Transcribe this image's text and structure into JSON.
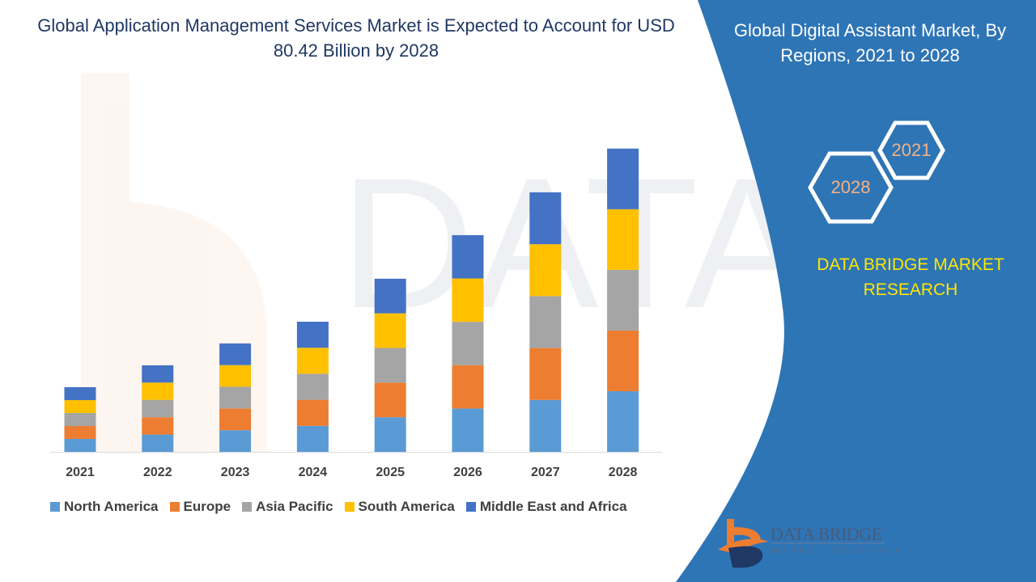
{
  "title": "Global Application Management Services Market is Expected to Account for USD 80.42 Billion by 2028",
  "side_panel": {
    "title": "Global Digital Assistant Market, By Regions, 2021 to 2028",
    "hex_years": [
      "2021",
      "2028"
    ],
    "brand": "DATA BRIDGE MARKET RESEARCH",
    "logo_text": "DATA BRIDGE",
    "logo_subtext": "MARKET RESEARCH",
    "panel_color": "#2e75b6"
  },
  "chart_data": {
    "type": "bar",
    "stacked": true,
    "categories": [
      "2021",
      "2022",
      "2023",
      "2024",
      "2025",
      "2026",
      "2027",
      "2028"
    ],
    "series": [
      {
        "name": "North America",
        "color": "#5b9bd5",
        "values": [
          3.43,
          4.59,
          5.75,
          6.9,
          9.18,
          11.49,
          13.76,
          16.08
        ]
      },
      {
        "name": "Europe",
        "color": "#ed7d31",
        "values": [
          3.43,
          4.59,
          5.75,
          6.9,
          9.18,
          11.49,
          13.76,
          16.08
        ]
      },
      {
        "name": "Asia Pacific",
        "color": "#a5a5a5",
        "values": [
          3.43,
          4.59,
          5.75,
          6.9,
          9.18,
          11.49,
          13.76,
          16.08
        ]
      },
      {
        "name": "South America",
        "color": "#ffc000",
        "values": [
          3.43,
          4.59,
          5.75,
          6.9,
          9.18,
          11.49,
          13.76,
          16.08
        ]
      },
      {
        "name": "Middle East and Africa",
        "color": "#4472c4",
        "values": [
          3.43,
          4.59,
          5.75,
          6.9,
          9.18,
          11.49,
          13.76,
          16.08
        ]
      }
    ],
    "ylim": [
      0,
      90
    ],
    "grid": false,
    "y_axis_shown": false,
    "legend_position": "bottom"
  }
}
